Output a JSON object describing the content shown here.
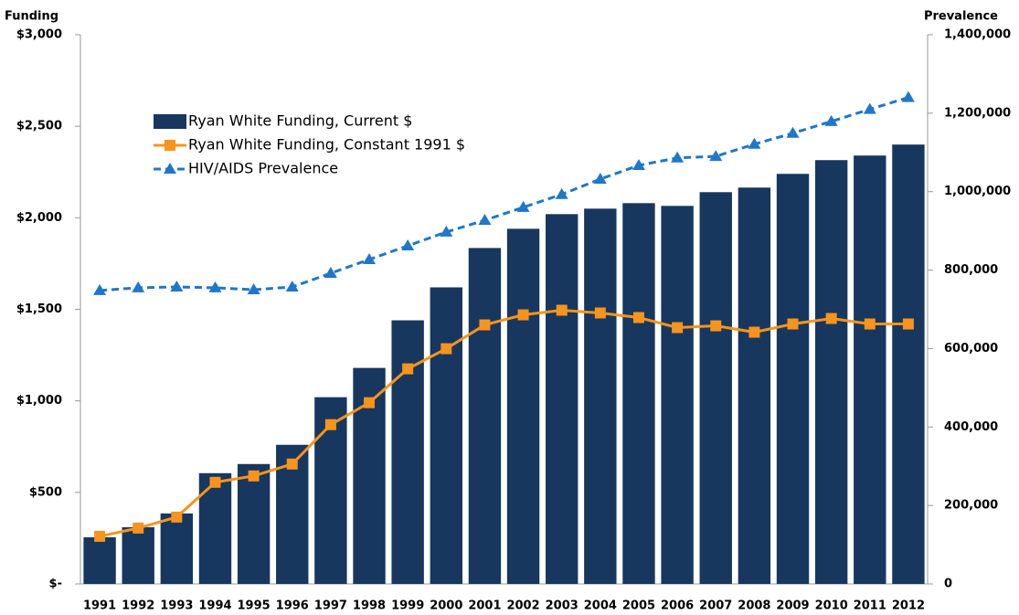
{
  "chart_data": {
    "type": "bar",
    "y_label": "Funding",
    "y2_label": "Prevalence",
    "categories": [
      "1991",
      "1992",
      "1993",
      "1994",
      "1995",
      "1996",
      "1997",
      "1998",
      "1999",
      "2000",
      "2001",
      "2002",
      "2003",
      "2004",
      "2005",
      "2006",
      "2007",
      "2008",
      "2009",
      "2010",
      "2011",
      "2012"
    ],
    "series": [
      {
        "name": "Ryan White Funding, Current $",
        "type": "bar",
        "color": "#17375e",
        "values": [
          255,
          310,
          385,
          605,
          655,
          760,
          1020,
          1180,
          1440,
          1620,
          1835,
          1940,
          2020,
          2050,
          2080,
          2065,
          2140,
          2165,
          2240,
          2315,
          2340,
          2400
        ]
      },
      {
        "name": "Ryan White Funding, Constant 1991 $",
        "type": "line",
        "marker": "square",
        "dashed": false,
        "color": "#f7941d",
        "values": [
          260,
          305,
          365,
          555,
          590,
          655,
          870,
          990,
          1175,
          1285,
          1415,
          1470,
          1495,
          1480,
          1455,
          1400,
          1410,
          1375,
          1420,
          1450,
          1420,
          1420
        ]
      },
      {
        "name": "HIV/AIDS Prevalence",
        "type": "line",
        "marker": "triangle",
        "dashed": true,
        "color": "#1f77c9",
        "axis": "y2",
        "values": [
          748000,
          755000,
          757000,
          755000,
          750000,
          757000,
          792000,
          827000,
          862000,
          897000,
          927000,
          960000,
          993000,
          1032000,
          1067000,
          1086000,
          1090000,
          1121000,
          1149000,
          1179000,
          1210000,
          1240000
        ]
      }
    ],
    "ylim": [
      0,
      3000
    ],
    "yticks": [
      {
        "value": 0,
        "label": "$-"
      },
      {
        "value": 500,
        "label": "$500"
      },
      {
        "value": 1000,
        "label": "$1,000"
      },
      {
        "value": 1500,
        "label": "$1,500"
      },
      {
        "value": 2000,
        "label": "$2,000"
      },
      {
        "value": 2500,
        "label": "$2,500"
      },
      {
        "value": 3000,
        "label": "$3,000"
      }
    ],
    "y2lim": [
      0,
      1400000
    ],
    "y2ticks": [
      0,
      {
        "value": 200000,
        "label": "200,000"
      },
      {
        "value": 400000,
        "label": "400,000"
      },
      {
        "value": 600000,
        "label": "600,000"
      },
      {
        "value": 800000,
        "label": "800,000"
      },
      {
        "value": 1000000,
        "label": "1,000,000"
      },
      {
        "value": 1200000,
        "label": "1,200,000"
      },
      {
        "value": 1400000,
        "label": "1,400,000"
      }
    ],
    "legend": "upper left",
    "grid": false
  }
}
